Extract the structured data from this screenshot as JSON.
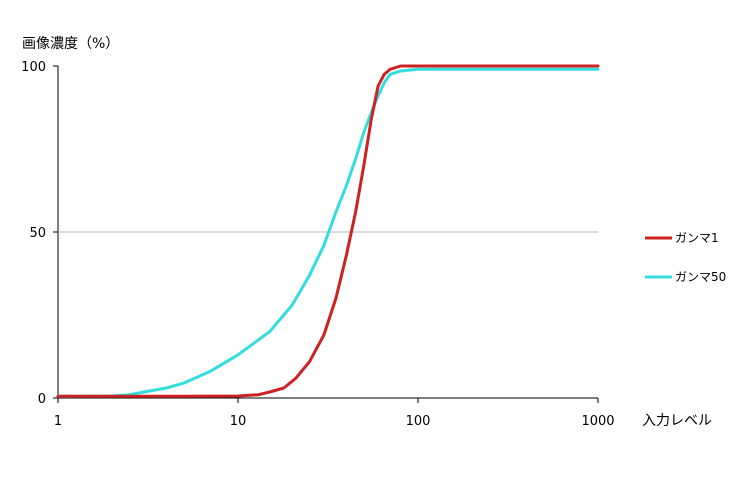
{
  "chart_data": {
    "type": "line",
    "title": "",
    "ylabel": "画像濃度（%）",
    "xlabel": "入力レベル",
    "x_scale": "log",
    "xlim": [
      1,
      1000
    ],
    "ylim": [
      0,
      100
    ],
    "x_ticks": [
      "1",
      "10",
      "100",
      "1000"
    ],
    "y_ticks": [
      "0",
      "50",
      "100"
    ],
    "gridlines_y": [
      50
    ],
    "legend_position": "right",
    "series": [
      {
        "name": "ガンマ1",
        "color": "#cc2222",
        "points": [
          [
            1,
            0.5
          ],
          [
            2,
            0.5
          ],
          [
            5,
            0.5
          ],
          [
            10,
            0.6
          ],
          [
            13,
            1
          ],
          [
            15,
            1.8
          ],
          [
            18,
            3
          ],
          [
            21,
            6
          ],
          [
            25,
            11
          ],
          [
            30,
            19
          ],
          [
            35,
            30
          ],
          [
            40,
            43
          ],
          [
            45,
            56
          ],
          [
            50,
            70
          ],
          [
            55,
            84
          ],
          [
            60,
            94
          ],
          [
            65,
            97.5
          ],
          [
            70,
            99
          ],
          [
            80,
            100
          ],
          [
            100,
            100
          ],
          [
            200,
            100
          ],
          [
            500,
            100
          ],
          [
            1000,
            100
          ]
        ]
      },
      {
        "name": "ガンマ50",
        "color": "#33dddd",
        "points": [
          [
            1,
            0.5
          ],
          [
            2,
            0.6
          ],
          [
            2.5,
            1
          ],
          [
            3,
            1.8
          ],
          [
            4,
            3
          ],
          [
            5,
            4.5
          ],
          [
            7,
            8
          ],
          [
            10,
            13
          ],
          [
            15,
            20
          ],
          [
            20,
            28
          ],
          [
            25,
            37
          ],
          [
            30,
            46
          ],
          [
            35,
            56
          ],
          [
            40,
            64
          ],
          [
            45,
            72
          ],
          [
            50,
            80
          ],
          [
            55,
            86
          ],
          [
            60,
            91
          ],
          [
            65,
            95
          ],
          [
            70,
            97.5
          ],
          [
            80,
            98.5
          ],
          [
            100,
            99
          ],
          [
            200,
            99
          ],
          [
            500,
            99
          ],
          [
            1000,
            99
          ]
        ]
      }
    ]
  }
}
